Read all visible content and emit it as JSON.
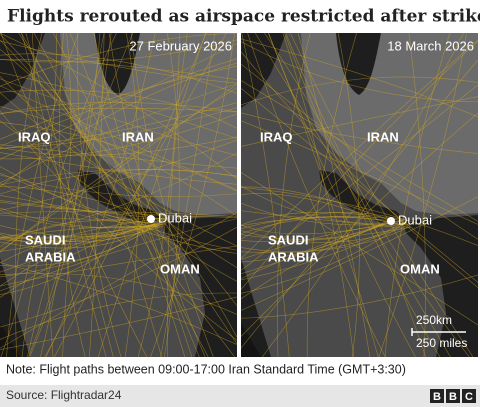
{
  "title": "Flights rerouted as airspace restricted after strikes",
  "panels": [
    {
      "date": "27 February 2026",
      "countries": {
        "iraq": "IRAQ",
        "iran": "IRAN",
        "saudi": [
          "SAUDI",
          "ARABIA"
        ],
        "oman": "OMAN"
      },
      "city": "Dubai"
    },
    {
      "date": "18 March 2026",
      "countries": {
        "iraq": "IRAQ",
        "iran": "IRAN",
        "saudi": [
          "SAUDI",
          "ARABIA"
        ],
        "oman": "OMAN"
      },
      "city": "Dubai"
    }
  ],
  "scale": {
    "km": "250km",
    "miles": "250 miles"
  },
  "note": "Note: Flight paths between 09:00-17:00 Iran Standard Time (GMT+3:30)",
  "source": "Source: Flightradar24",
  "logo": [
    "B",
    "B",
    "C"
  ]
}
